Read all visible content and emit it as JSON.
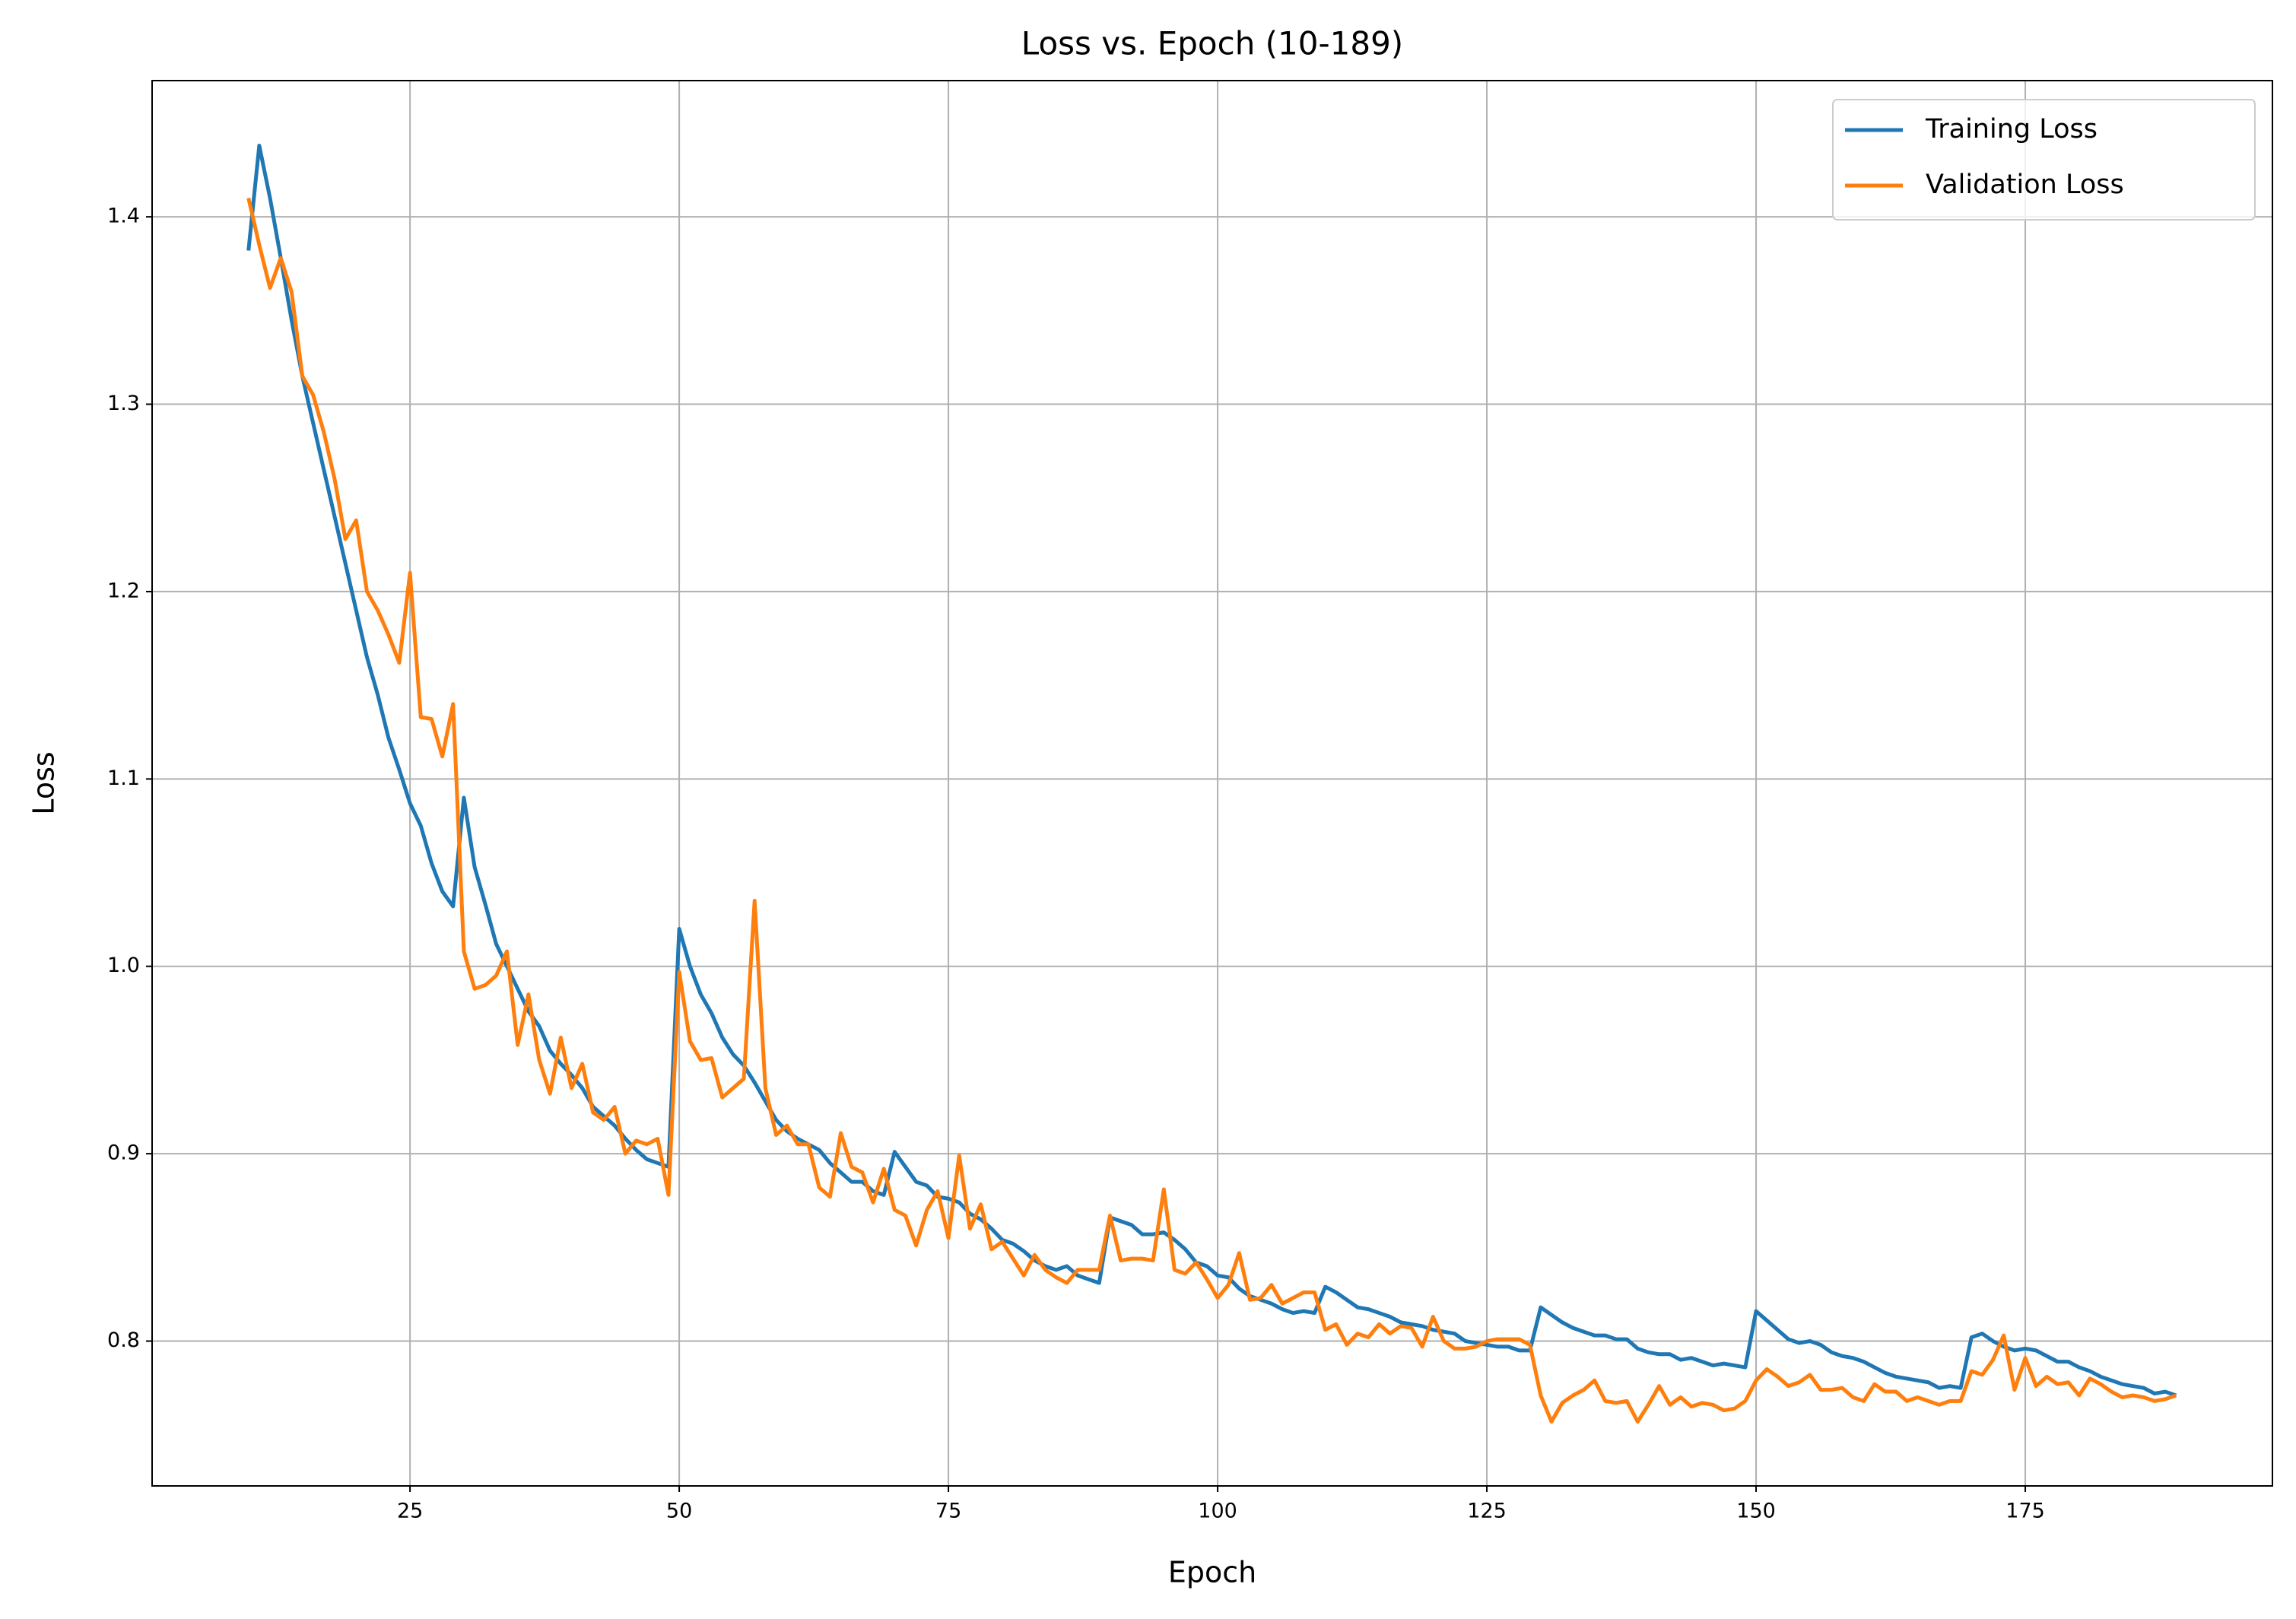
{
  "chart_data": {
    "type": "line",
    "title": "Loss vs. Epoch (10-189)",
    "x_label": "Epoch",
    "y_label": "Loss",
    "x": [
      10,
      11,
      12,
      13,
      14,
      15,
      16,
      17,
      18,
      19,
      20,
      21,
      22,
      23,
      24,
      25,
      26,
      27,
      28,
      29,
      30,
      31,
      32,
      33,
      34,
      35,
      36,
      37,
      38,
      39,
      40,
      41,
      42,
      43,
      44,
      45,
      46,
      47,
      48,
      49,
      50,
      51,
      52,
      53,
      54,
      55,
      56,
      57,
      58,
      59,
      60,
      61,
      62,
      63,
      64,
      65,
      66,
      67,
      68,
      69,
      70,
      71,
      72,
      73,
      74,
      75,
      76,
      77,
      78,
      79,
      80,
      81,
      82,
      83,
      84,
      85,
      86,
      87,
      88,
      89,
      90,
      91,
      92,
      93,
      94,
      95,
      96,
      97,
      98,
      99,
      100,
      101,
      102,
      103,
      104,
      105,
      106,
      107,
      108,
      109,
      110,
      111,
      112,
      113,
      114,
      115,
      116,
      117,
      118,
      119,
      120,
      121,
      122,
      123,
      124,
      125,
      126,
      127,
      128,
      129,
      130,
      131,
      132,
      133,
      134,
      135,
      136,
      137,
      138,
      139,
      140,
      141,
      142,
      143,
      144,
      145,
      146,
      147,
      148,
      149,
      150,
      151,
      152,
      153,
      154,
      155,
      156,
      157,
      158,
      159,
      160,
      161,
      162,
      163,
      164,
      165,
      166,
      167,
      168,
      169,
      170,
      171,
      172,
      173,
      174,
      175,
      176,
      177,
      178,
      179,
      180,
      181,
      182,
      183,
      184,
      185,
      186,
      187,
      188,
      189
    ],
    "series": [
      {
        "name": "Training Loss",
        "color": "#1f77b4",
        "values": [
          1.382,
          1.438,
          1.41,
          1.378,
          1.345,
          1.315,
          1.29,
          1.265,
          1.24,
          1.215,
          1.19,
          1.165,
          1.145,
          1.122,
          1.105,
          1.087,
          1.075,
          1.055,
          1.04,
          1.032,
          1.09,
          1.053,
          1.033,
          1.012,
          1.0,
          0.988,
          0.976,
          0.968,
          0.955,
          0.948,
          0.942,
          0.935,
          0.925,
          0.92,
          0.915,
          0.908,
          0.902,
          0.897,
          0.895,
          0.893,
          1.02,
          1.0,
          0.985,
          0.975,
          0.962,
          0.953,
          0.947,
          0.938,
          0.928,
          0.918,
          0.912,
          0.908,
          0.905,
          0.902,
          0.895,
          0.89,
          0.885,
          0.885,
          0.88,
          0.878,
          0.901,
          0.893,
          0.885,
          0.883,
          0.877,
          0.876,
          0.874,
          0.868,
          0.865,
          0.86,
          0.854,
          0.852,
          0.848,
          0.843,
          0.84,
          0.838,
          0.84,
          0.835,
          0.833,
          0.831,
          0.866,
          0.864,
          0.862,
          0.857,
          0.857,
          0.858,
          0.854,
          0.849,
          0.842,
          0.84,
          0.835,
          0.834,
          0.828,
          0.824,
          0.822,
          0.82,
          0.817,
          0.815,
          0.816,
          0.815,
          0.829,
          0.826,
          0.822,
          0.818,
          0.817,
          0.815,
          0.813,
          0.81,
          0.809,
          0.808,
          0.806,
          0.805,
          0.804,
          0.8,
          0.799,
          0.798,
          0.797,
          0.797,
          0.795,
          0.795,
          0.818,
          0.814,
          0.81,
          0.807,
          0.805,
          0.803,
          0.803,
          0.801,
          0.801,
          0.796,
          0.794,
          0.793,
          0.793,
          0.79,
          0.791,
          0.789,
          0.787,
          0.788,
          0.787,
          0.786,
          0.816,
          0.811,
          0.806,
          0.801,
          0.799,
          0.8,
          0.798,
          0.794,
          0.792,
          0.791,
          0.789,
          0.786,
          0.783,
          0.781,
          0.78,
          0.779,
          0.778,
          0.775,
          0.776,
          0.775,
          0.802,
          0.804,
          0.8,
          0.797,
          0.795,
          0.796,
          0.795,
          0.792,
          0.789,
          0.789,
          0.786,
          0.784,
          0.781,
          0.779,
          0.777,
          0.776,
          0.775,
          0.772,
          0.773,
          0.771
        ]
      },
      {
        "name": "Validation Loss",
        "color": "#ff7f0e",
        "values": [
          1.41,
          1.385,
          1.362,
          1.378,
          1.36,
          1.315,
          1.305,
          1.285,
          1.26,
          1.228,
          1.238,
          1.2,
          1.19,
          1.177,
          1.162,
          1.21,
          1.133,
          1.132,
          1.112,
          1.14,
          1.008,
          0.988,
          0.99,
          0.995,
          1.008,
          0.958,
          0.985,
          0.95,
          0.932,
          0.962,
          0.935,
          0.948,
          0.922,
          0.918,
          0.925,
          0.9,
          0.907,
          0.905,
          0.908,
          0.878,
          0.997,
          0.96,
          0.95,
          0.951,
          0.93,
          0.935,
          0.94,
          1.035,
          0.935,
          0.91,
          0.915,
          0.905,
          0.905,
          0.882,
          0.877,
          0.911,
          0.893,
          0.89,
          0.874,
          0.892,
          0.87,
          0.867,
          0.851,
          0.87,
          0.88,
          0.855,
          0.899,
          0.86,
          0.873,
          0.849,
          0.853,
          0.844,
          0.835,
          0.846,
          0.838,
          0.834,
          0.831,
          0.838,
          0.838,
          0.838,
          0.867,
          0.843,
          0.844,
          0.844,
          0.843,
          0.881,
          0.838,
          0.836,
          0.842,
          0.833,
          0.823,
          0.83,
          0.847,
          0.822,
          0.823,
          0.83,
          0.82,
          0.823,
          0.826,
          0.826,
          0.806,
          0.809,
          0.798,
          0.804,
          0.802,
          0.809,
          0.804,
          0.808,
          0.807,
          0.797,
          0.813,
          0.8,
          0.796,
          0.796,
          0.797,
          0.8,
          0.801,
          0.801,
          0.801,
          0.798,
          0.771,
          0.757,
          0.767,
          0.771,
          0.774,
          0.779,
          0.768,
          0.767,
          0.768,
          0.757,
          0.766,
          0.776,
          0.766,
          0.77,
          0.765,
          0.767,
          0.766,
          0.763,
          0.764,
          0.768,
          0.779,
          0.785,
          0.781,
          0.776,
          0.778,
          0.782,
          0.774,
          0.774,
          0.775,
          0.77,
          0.768,
          0.777,
          0.773,
          0.773,
          0.768,
          0.77,
          0.768,
          0.766,
          0.768,
          0.768,
          0.784,
          0.782,
          0.79,
          0.803,
          0.774,
          0.791,
          0.776,
          0.781,
          0.777,
          0.778,
          0.771,
          0.78,
          0.777,
          0.773,
          0.77,
          0.771,
          0.77,
          0.768,
          0.769,
          0.771
        ]
      }
    ],
    "xlim": [
      1.05,
      197.95
    ],
    "ylim": [
      0.7227,
      1.4727
    ],
    "xticks": [
      25,
      50,
      75,
      100,
      125,
      150,
      175
    ],
    "yticks": [
      0.8,
      0.9,
      {
        "value": 1,
        "label": "1.0"
      },
      1.1,
      1.2,
      1.3,
      1.4
    ],
    "grid": true,
    "legend": "upper right"
  }
}
